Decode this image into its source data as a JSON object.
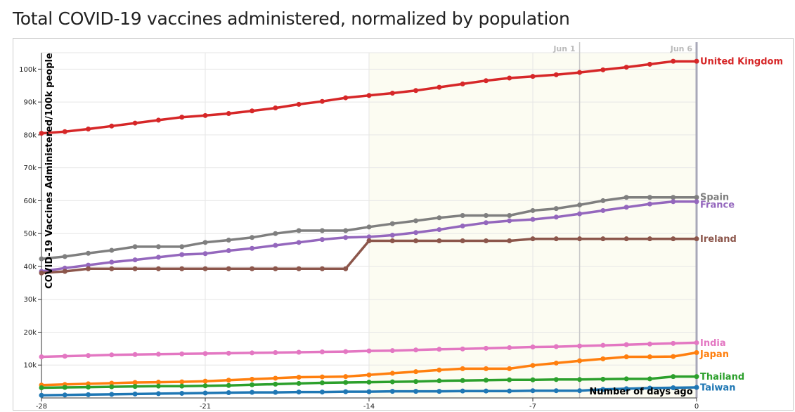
{
  "page": {
    "title": "Total COVID-19 vaccines administered, normalized by population"
  },
  "chart_data": {
    "type": "line",
    "title": "Total COVID-19 vaccines administered, normalized by population",
    "xlabel": "Number of days ago",
    "ylabel": "COVID-19 Vaccines Administered/100k people",
    "xlim": [
      -28,
      0
    ],
    "ylim": [
      0,
      105000
    ],
    "x_ticks": [
      -28,
      -21,
      -14,
      -7,
      0
    ],
    "y_ticks": [
      10000,
      20000,
      30000,
      40000,
      50000,
      60000,
      70000,
      80000,
      90000,
      100000
    ],
    "y_tick_labels": [
      "10k",
      "20k",
      "30k",
      "40k",
      "50k",
      "60k",
      "70k",
      "80k",
      "90k",
      "100k"
    ],
    "highlight_range": [
      -14,
      0
    ],
    "highlight_color": "#fcfcf2",
    "date_markers": [
      {
        "x": -5,
        "label": "Jun 1"
      },
      {
        "x": 0,
        "label": "Jun 6"
      }
    ],
    "grid": true,
    "x": [
      -28,
      -27,
      -26,
      -25,
      -24,
      -23,
      -22,
      -21,
      -20,
      -19,
      -18,
      -17,
      -16,
      -15,
      -14,
      -13,
      -12,
      -11,
      -10,
      -9,
      -8,
      -7,
      -6,
      -5,
      -4,
      -3,
      -2,
      -1,
      0
    ],
    "series": [
      {
        "name": "United Kingdom",
        "color": "#d62728",
        "values": [
          80500,
          81000,
          81800,
          82700,
          83600,
          84500,
          85400,
          85900,
          86500,
          87300,
          88200,
          89300,
          90200,
          91300,
          92000,
          92700,
          93500,
          94500,
          95500,
          96500,
          97300,
          97800,
          98300,
          99000,
          99800,
          100600,
          101500,
          102400,
          102400
        ]
      },
      {
        "name": "Spain",
        "color": "#7f7f7f",
        "values": [
          42300,
          43000,
          44000,
          44900,
          46000,
          46000,
          46000,
          47300,
          48000,
          48800,
          50000,
          50900,
          50900,
          50900,
          52000,
          53000,
          53900,
          54800,
          55500,
          55500,
          55500,
          57000,
          57600,
          58700,
          60000,
          61000,
          61000,
          61000,
          61000
        ]
      },
      {
        "name": "France",
        "color": "#9467bd",
        "values": [
          38500,
          39500,
          40400,
          41300,
          42000,
          42800,
          43600,
          43900,
          44800,
          45500,
          46400,
          47300,
          48200,
          48800,
          49000,
          49500,
          50300,
          51200,
          52300,
          53300,
          53900,
          54300,
          55000,
          56000,
          57000,
          58000,
          59000,
          59700,
          59700
        ]
      },
      {
        "name": "Ireland",
        "color": "#8c564b",
        "values": [
          38000,
          38500,
          39300,
          39300,
          39300,
          39300,
          39300,
          39300,
          39300,
          39300,
          39300,
          39300,
          39300,
          39300,
          47800,
          47800,
          47800,
          47800,
          47800,
          47800,
          47800,
          48400,
          48400,
          48400,
          48400,
          48400,
          48400,
          48400,
          48400
        ]
      },
      {
        "name": "India",
        "color": "#e377c2",
        "values": [
          12500,
          12700,
          12900,
          13100,
          13200,
          13300,
          13400,
          13500,
          13600,
          13700,
          13800,
          13900,
          14000,
          14100,
          14300,
          14400,
          14600,
          14800,
          14900,
          15100,
          15300,
          15500,
          15600,
          15800,
          16000,
          16200,
          16400,
          16600,
          16800
        ]
      },
      {
        "name": "Japan",
        "color": "#ff7f0e",
        "values": [
          3900,
          4100,
          4300,
          4500,
          4700,
          4800,
          4900,
          5100,
          5400,
          5700,
          6000,
          6300,
          6400,
          6500,
          7000,
          7500,
          8000,
          8500,
          8900,
          8900,
          8900,
          9900,
          10600,
          11300,
          11900,
          12500,
          12500,
          12600,
          13800
        ]
      },
      {
        "name": "Thailand",
        "color": "#2ca02c",
        "values": [
          3100,
          3200,
          3300,
          3400,
          3500,
          3600,
          3600,
          3700,
          3800,
          4000,
          4200,
          4400,
          4600,
          4700,
          4800,
          4900,
          5000,
          5200,
          5300,
          5400,
          5500,
          5500,
          5600,
          5600,
          5700,
          5800,
          5800,
          6500,
          6500
        ]
      },
      {
        "name": "Taiwan",
        "color": "#1f77b4",
        "values": [
          800,
          900,
          1000,
          1100,
          1200,
          1300,
          1400,
          1500,
          1600,
          1700,
          1700,
          1800,
          1800,
          1900,
          1900,
          2000,
          2000,
          2000,
          2100,
          2100,
          2100,
          2200,
          2200,
          2200,
          2600,
          2800,
          3000,
          3100,
          3200
        ]
      }
    ]
  }
}
